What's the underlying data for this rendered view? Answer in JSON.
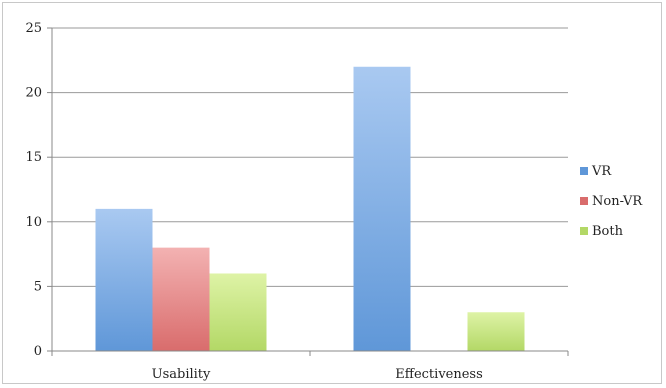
{
  "chart_data": {
    "type": "bar",
    "categories": [
      "Usability",
      "Effectiveness"
    ],
    "series": [
      {
        "name": "VR",
        "values": [
          11,
          22
        ]
      },
      {
        "name": "Non-VR",
        "values": [
          8,
          0
        ]
      },
      {
        "name": "Both",
        "values": [
          6,
          3
        ]
      }
    ],
    "ylim": [
      0,
      25
    ],
    "yticks": [
      0,
      5,
      10,
      15,
      20,
      25
    ],
    "grid": true,
    "legend_position": "right",
    "colors": {
      "VR": [
        "#a9c9f1",
        "#5f97d8"
      ],
      "Non-VR": [
        "#f3b2b2",
        "#d96c6c"
      ],
      "Both": [
        "#def3a6",
        "#b3d866"
      ]
    }
  }
}
